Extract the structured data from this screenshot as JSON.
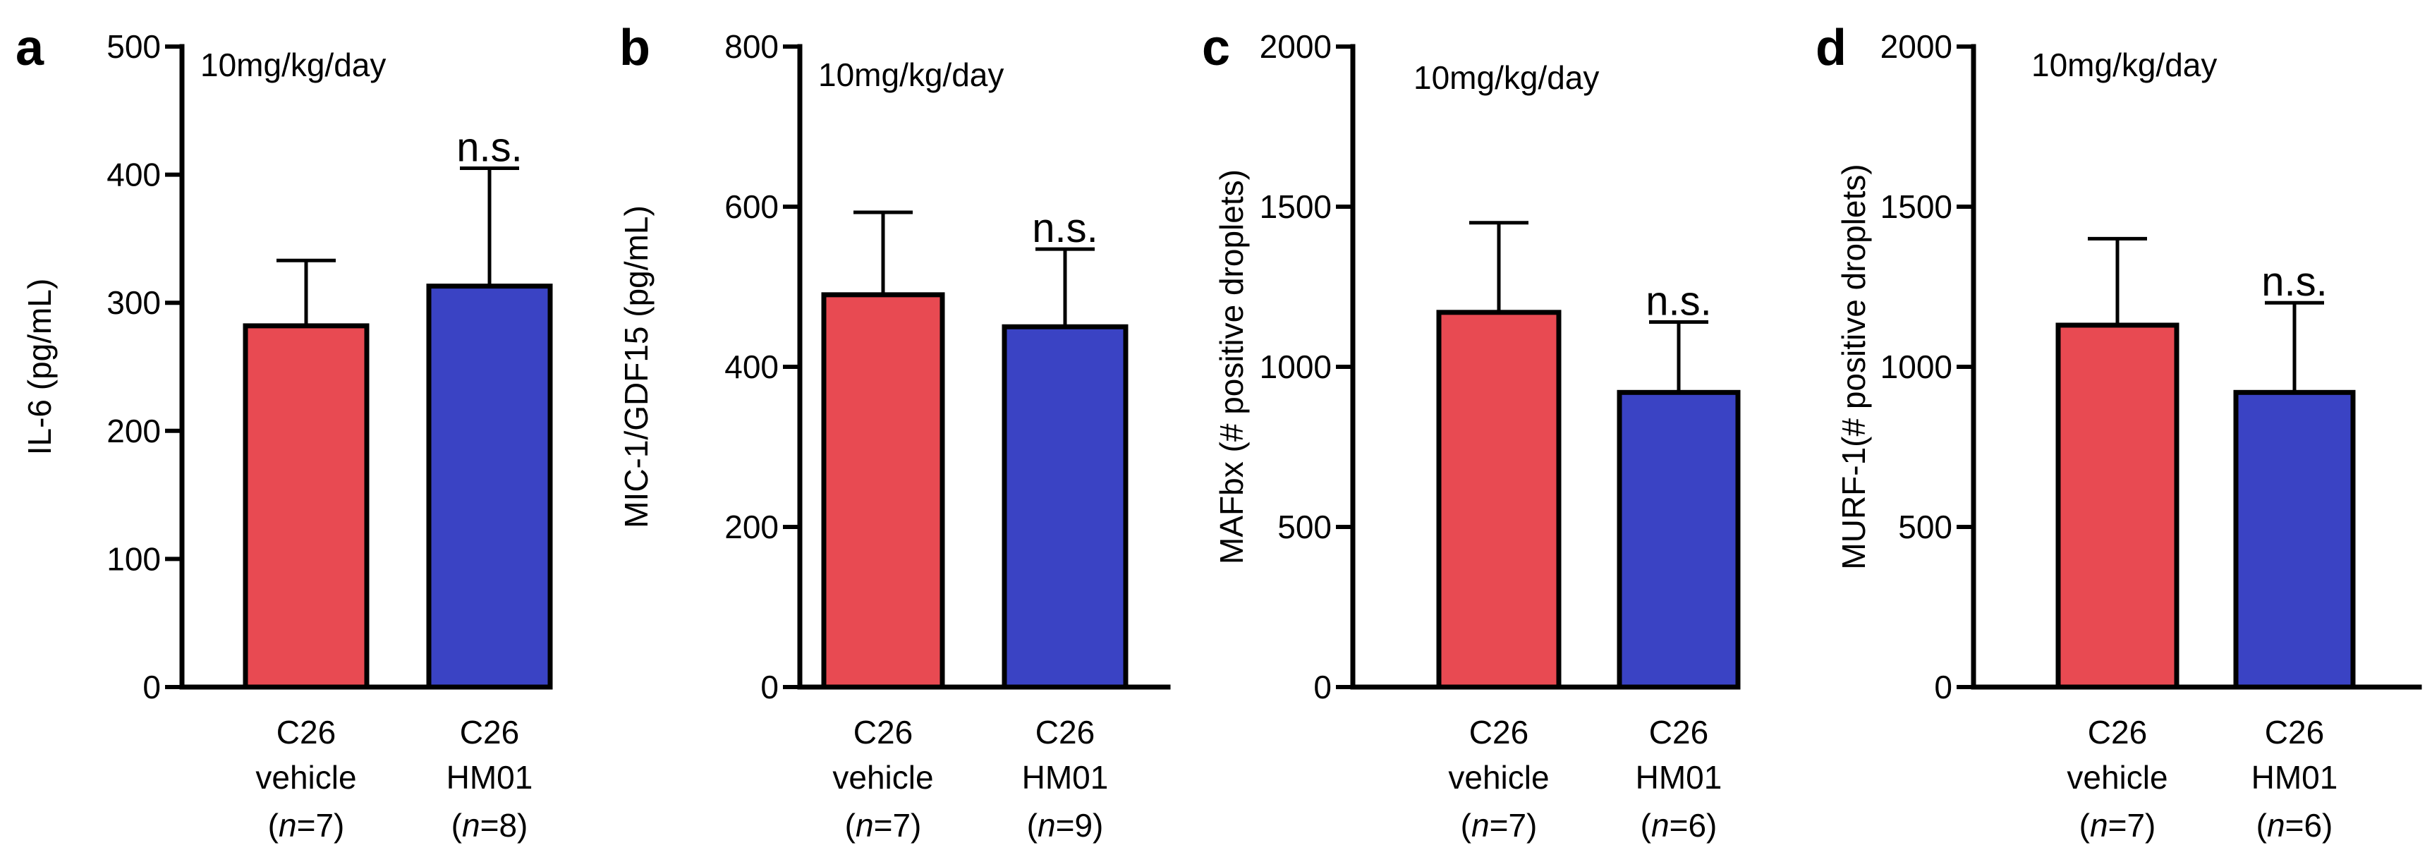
{
  "chart_data": [
    {
      "panel": "a",
      "type": "bar",
      "title": "10mg/kg/day",
      "xlabel": "",
      "ylabel": "IL-6 (pg/mL)",
      "ylim": [
        0,
        500
      ],
      "yticks": [
        0,
        100,
        200,
        300,
        400,
        500
      ],
      "ytick_labels": [
        "0",
        "100",
        "200",
        "300",
        "400",
        "500"
      ],
      "categories": [
        {
          "line1": "C26",
          "line2": "vehicle",
          "n_prefix": "(",
          "n_italic": "n",
          "n_suffix": "=7)"
        },
        {
          "line1": "C26",
          "line2": "HM01",
          "n_prefix": "(",
          "n_italic": "n",
          "n_suffix": "=8)"
        }
      ],
      "values": [
        282,
        313
      ],
      "errors": [
        51,
        92
      ],
      "colors": [
        "#e84a52",
        "#3a43c4"
      ],
      "annotation": {
        "text": "n.s.",
        "bar_index": 1
      }
    },
    {
      "panel": "b",
      "type": "bar",
      "title": "10mg/kg/day",
      "xlabel": "",
      "ylabel": "MIC-1/GDF15 (pg/mL)",
      "ylim": [
        0,
        800
      ],
      "yticks": [
        0,
        200,
        400,
        600,
        800
      ],
      "ytick_labels": [
        "0",
        "200",
        "400",
        "600",
        "800"
      ],
      "categories": [
        {
          "line1": "C26",
          "line2": "vehicle",
          "n_prefix": "(",
          "n_italic": "n",
          "n_suffix": "=7)"
        },
        {
          "line1": "C26",
          "line2": "HM01",
          "n_prefix": "(",
          "n_italic": "n",
          "n_suffix": "=9)"
        }
      ],
      "values": [
        490,
        450
      ],
      "errors": [
        103,
        97
      ],
      "colors": [
        "#e84a52",
        "#3a43c4"
      ],
      "annotation": {
        "text": "n.s.",
        "bar_index": 1
      }
    },
    {
      "panel": "c",
      "type": "bar",
      "title": "10mg/kg/day",
      "xlabel": "",
      "ylabel": "MAFbx (# positive droplets)",
      "ylim": [
        0,
        2000
      ],
      "yticks": [
        0,
        500,
        1000,
        1500,
        2000
      ],
      "ytick_labels": [
        "0",
        "500",
        "1000",
        "1500",
        "2000"
      ],
      "categories": [
        {
          "line1": "C26",
          "line2": "vehicle",
          "n_prefix": "(",
          "n_italic": "n",
          "n_suffix": "=7)"
        },
        {
          "line1": "C26",
          "line2": "HM01",
          "n_prefix": "(",
          "n_italic": "n",
          "n_suffix": "=6)"
        }
      ],
      "values": [
        1170,
        920
      ],
      "errors": [
        280,
        220
      ],
      "colors": [
        "#e84a52",
        "#3a43c4"
      ],
      "annotation": {
        "text": "n.s.",
        "bar_index": 1
      }
    },
    {
      "panel": "d",
      "type": "bar",
      "title": "10mg/kg/day",
      "xlabel": "",
      "ylabel": "MURF-1(# positive droplets)",
      "ylim": [
        0,
        2000
      ],
      "yticks": [
        0,
        500,
        1000,
        1500,
        2000
      ],
      "ytick_labels": [
        "0",
        "500",
        "1000",
        "1500",
        "2000"
      ],
      "categories": [
        {
          "line1": "C26",
          "line2": "vehicle",
          "n_prefix": "(",
          "n_italic": "n",
          "n_suffix": "=7)"
        },
        {
          "line1": "C26",
          "line2": "HM01",
          "n_prefix": "(",
          "n_italic": "n",
          "n_suffix": "=6)"
        }
      ],
      "values": [
        1130,
        920
      ],
      "errors": [
        270,
        280
      ],
      "colors": [
        "#e84a52",
        "#3a43c4"
      ],
      "annotation": {
        "text": "n.s.",
        "bar_index": 1
      }
    }
  ]
}
